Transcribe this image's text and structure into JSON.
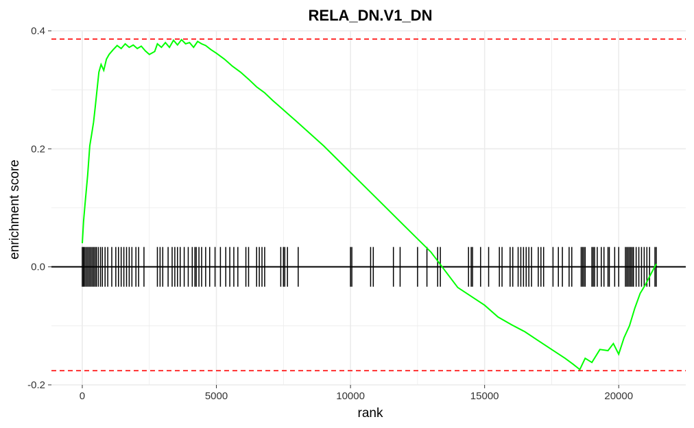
{
  "chart_data": {
    "type": "line",
    "title": "RELA_DN.V1_DN",
    "xlabel": "rank",
    "ylabel": "enrichment score",
    "xlim": [
      -1150,
      22500
    ],
    "ylim": [
      -0.2,
      0.4
    ],
    "x_ticks": [
      0,
      5000,
      10000,
      15000,
      20000
    ],
    "x_tick_labels": [
      "0",
      "5000",
      "10000",
      "15000",
      "20000"
    ],
    "y_ticks": [
      -0.2,
      0.0,
      0.2,
      0.4
    ],
    "y_tick_labels": [
      "-0.2",
      "0.0",
      "0.2",
      "0.4"
    ],
    "grid": true,
    "legend": "none",
    "max_es": 0.386,
    "min_es": -0.176,
    "colors": {
      "curve": "#00ff00",
      "threshold": "#ff0000",
      "hits": "#000000",
      "grid": "#ebebeb",
      "zero_line": "#000000"
    },
    "series": [
      {
        "x": [
          0,
          50,
          100,
          200,
          280,
          350,
          420,
          480,
          550,
          620,
          700,
          800,
          900,
          1000,
          1150,
          1300,
          1450,
          1600,
          1750,
          1900,
          2050,
          2200,
          2350,
          2500,
          2700,
          2800,
          2950,
          3100,
          3250,
          3400,
          3550,
          3700,
          3850,
          4000,
          4150,
          4300,
          4450,
          4600,
          4800,
          5000,
          5300,
          5600,
          5900,
          6200,
          6500,
          6800,
          7100,
          7400,
          7700,
          8000,
          9000,
          10000,
          11000,
          12000,
          13000,
          14000,
          15000,
          15500,
          16000,
          16500,
          17000,
          17500,
          18000,
          18300,
          18550,
          18750,
          19000,
          19300,
          19600,
          19800,
          20000,
          20200,
          20400,
          20600,
          20800,
          21000,
          21200,
          21400
        ],
        "y": [
          0.04,
          0.078,
          0.105,
          0.155,
          0.205,
          0.225,
          0.245,
          0.27,
          0.3,
          0.33,
          0.343,
          0.333,
          0.352,
          0.36,
          0.368,
          0.375,
          0.37,
          0.378,
          0.372,
          0.376,
          0.37,
          0.374,
          0.366,
          0.36,
          0.365,
          0.378,
          0.372,
          0.38,
          0.372,
          0.384,
          0.376,
          0.385,
          0.378,
          0.38,
          0.372,
          0.382,
          0.378,
          0.375,
          0.368,
          0.362,
          0.352,
          0.34,
          0.33,
          0.318,
          0.305,
          0.295,
          0.282,
          0.27,
          0.258,
          0.246,
          0.205,
          0.16,
          0.115,
          0.07,
          0.025,
          -0.035,
          -0.065,
          -0.085,
          -0.098,
          -0.11,
          -0.125,
          -0.14,
          -0.155,
          -0.165,
          -0.174,
          -0.155,
          -0.162,
          -0.14,
          -0.142,
          -0.13,
          -0.148,
          -0.12,
          -0.1,
          -0.07,
          -0.045,
          -0.03,
          -0.012,
          0.005
        ]
      }
    ],
    "hits": [
      0,
      40,
      80,
      130,
      180,
      230,
      280,
      330,
      380,
      430,
      480,
      530,
      600,
      680,
      750,
      850,
      950,
      1100,
      1250,
      1350,
      1450,
      1550,
      1650,
      1750,
      1850,
      2000,
      2100,
      2300,
      2800,
      2900,
      3000,
      3200,
      3350,
      3450,
      3550,
      3650,
      3800,
      3950,
      4100,
      4200,
      4250,
      4350,
      4450,
      4600,
      4750,
      4950,
      5150,
      5350,
      5500,
      5650,
      5800,
      6100,
      6200,
      6500,
      6600,
      6700,
      6800,
      7400,
      7500,
      7550,
      7650,
      8050,
      10000,
      10050,
      10750,
      10850,
      11600,
      11850,
      12500,
      12850,
      13250,
      13350,
      14400,
      14500,
      14550,
      14850,
      15150,
      15550,
      15650,
      15950,
      16050,
      16250,
      16350,
      16450,
      16550,
      16650,
      16750,
      17000,
      17100,
      17200,
      17550,
      17750,
      17900,
      18150,
      18250,
      18600,
      18650,
      18700,
      18750,
      19000,
      19050,
      19100,
      19200,
      19350,
      19450,
      19600,
      19650,
      19850,
      20000,
      20250,
      20300,
      20350,
      20400,
      20450,
      20500,
      20550,
      20650,
      20750,
      20850,
      20950,
      21050,
      21150,
      21350,
      21400
    ]
  }
}
